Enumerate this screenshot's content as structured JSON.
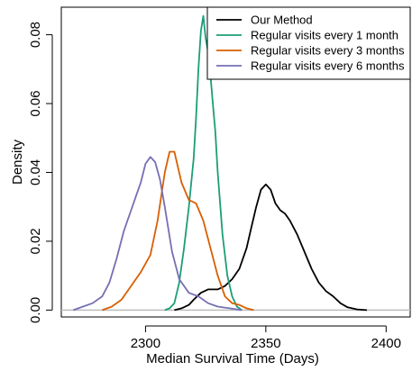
{
  "chart_data": {
    "type": "line",
    "title": "",
    "xlabel": "Median Survival Time (Days)",
    "ylabel": "Density",
    "xlim": [
      2265,
      2410
    ],
    "ylim": [
      -0.002,
      0.088
    ],
    "xticks": [
      2300,
      2350,
      2400
    ],
    "yticks": [
      0.0,
      0.02,
      0.04,
      0.06,
      0.08
    ],
    "xtick_labels": [
      "2300",
      "2350",
      "2400"
    ],
    "ytick_labels": [
      "0.00",
      "0.02",
      "0.04",
      "0.06",
      "0.08"
    ],
    "grid": false,
    "legend_position": "top-right",
    "series": [
      {
        "name": "Our Method",
        "color": "#000000",
        "x": [
          2312,
          2315,
          2318,
          2320,
          2323,
          2326,
          2330,
          2333,
          2336,
          2339,
          2342,
          2344,
          2346,
          2348,
          2350,
          2352,
          2354,
          2356,
          2358,
          2360,
          2363,
          2366,
          2369,
          2372,
          2375,
          2378,
          2381,
          2384,
          2388,
          2392
        ],
        "y": [
          0.0,
          0.0005,
          0.0015,
          0.003,
          0.005,
          0.006,
          0.006,
          0.007,
          0.009,
          0.012,
          0.018,
          0.024,
          0.03,
          0.035,
          0.0365,
          0.035,
          0.031,
          0.029,
          0.028,
          0.026,
          0.022,
          0.017,
          0.012,
          0.008,
          0.0055,
          0.004,
          0.002,
          0.0008,
          0.0002,
          0.0
        ]
      },
      {
        "name": "Regular visits every 1 month",
        "color": "#1B9E77",
        "x": [
          2308,
          2310,
          2312,
          2314,
          2316,
          2318,
          2320,
          2321,
          2322,
          2323,
          2324,
          2325,
          2326,
          2327,
          2328,
          2329,
          2330,
          2332,
          2334,
          2336,
          2338,
          2340
        ],
        "y": [
          0.0,
          0.0005,
          0.002,
          0.008,
          0.018,
          0.03,
          0.044,
          0.056,
          0.07,
          0.081,
          0.0855,
          0.079,
          0.075,
          0.068,
          0.06,
          0.052,
          0.04,
          0.022,
          0.01,
          0.004,
          0.001,
          0.0
        ]
      },
      {
        "name": "Regular visits every 3 months",
        "color": "#D95F02",
        "x": [
          2282,
          2286,
          2290,
          2294,
          2298,
          2302,
          2305,
          2308,
          2310,
          2312,
          2315,
          2318,
          2321,
          2324,
          2327,
          2330,
          2333,
          2336,
          2339,
          2342,
          2345
        ],
        "y": [
          0.0,
          0.001,
          0.003,
          0.007,
          0.011,
          0.016,
          0.026,
          0.04,
          0.046,
          0.046,
          0.037,
          0.032,
          0.031,
          0.026,
          0.018,
          0.01,
          0.004,
          0.002,
          0.0015,
          0.0005,
          0.0
        ]
      },
      {
        "name": "Regular visits every 6 months",
        "color": "#7570B3",
        "x": [
          2270,
          2274,
          2278,
          2282,
          2285,
          2288,
          2291,
          2294,
          2296,
          2298,
          2300,
          2302,
          2304,
          2306,
          2308,
          2311,
          2314,
          2318,
          2322,
          2326,
          2330,
          2335,
          2340
        ],
        "y": [
          0.0,
          0.001,
          0.002,
          0.004,
          0.008,
          0.015,
          0.023,
          0.029,
          0.033,
          0.037,
          0.0425,
          0.0445,
          0.043,
          0.038,
          0.03,
          0.017,
          0.009,
          0.005,
          0.004,
          0.002,
          0.001,
          0.0005,
          0.0
        ]
      }
    ]
  }
}
